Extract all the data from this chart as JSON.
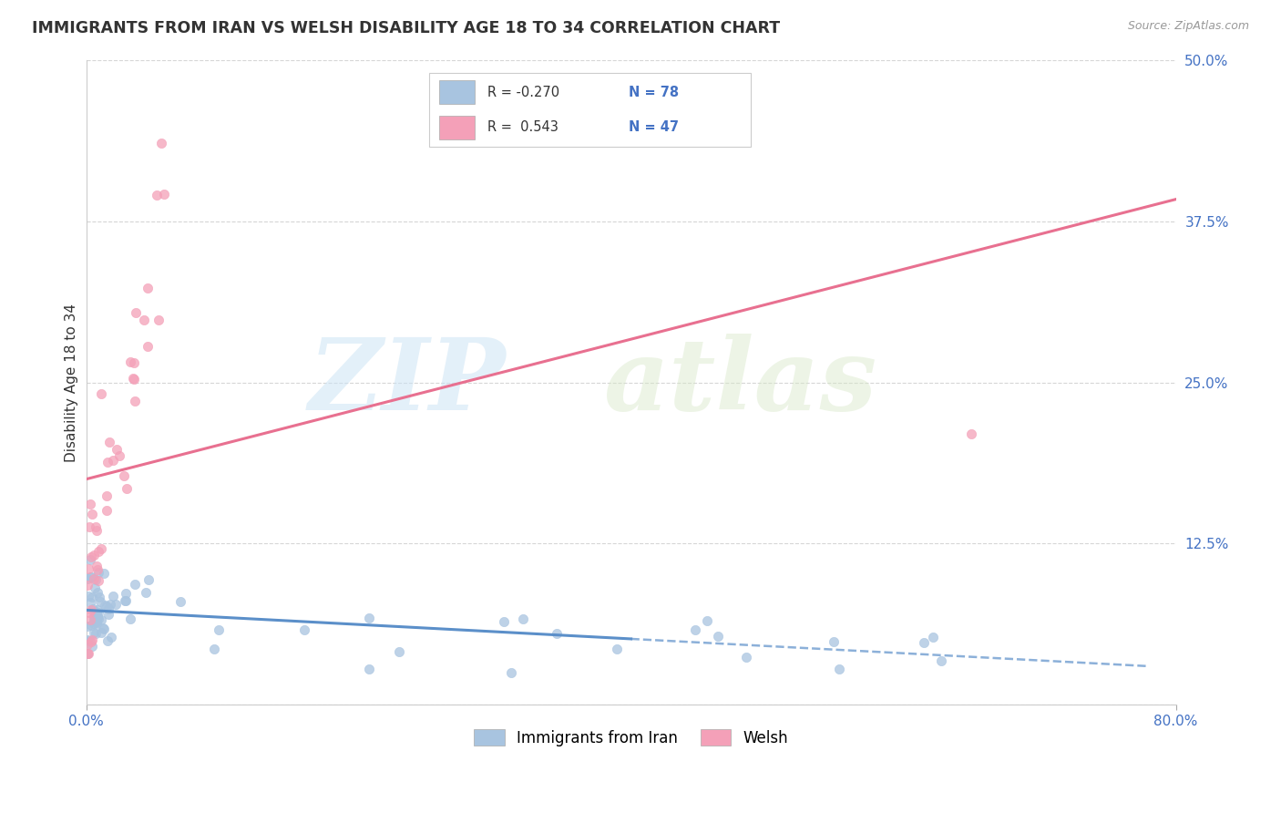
{
  "title": "IMMIGRANTS FROM IRAN VS WELSH DISABILITY AGE 18 TO 34 CORRELATION CHART",
  "source": "Source: ZipAtlas.com",
  "ylabel": "Disability Age 18 to 34",
  "xlim": [
    0.0,
    0.8
  ],
  "ylim": [
    0.0,
    0.5
  ],
  "color_blue": "#a8c4e0",
  "color_pink": "#f4a0b8",
  "line_blue": "#5b8fc9",
  "line_pink": "#e87090",
  "background_color": "#ffffff",
  "grid_color": "#cccccc",
  "title_color": "#333333",
  "axis_label_color": "#4472c4",
  "legend_r_color": "#4472c4"
}
